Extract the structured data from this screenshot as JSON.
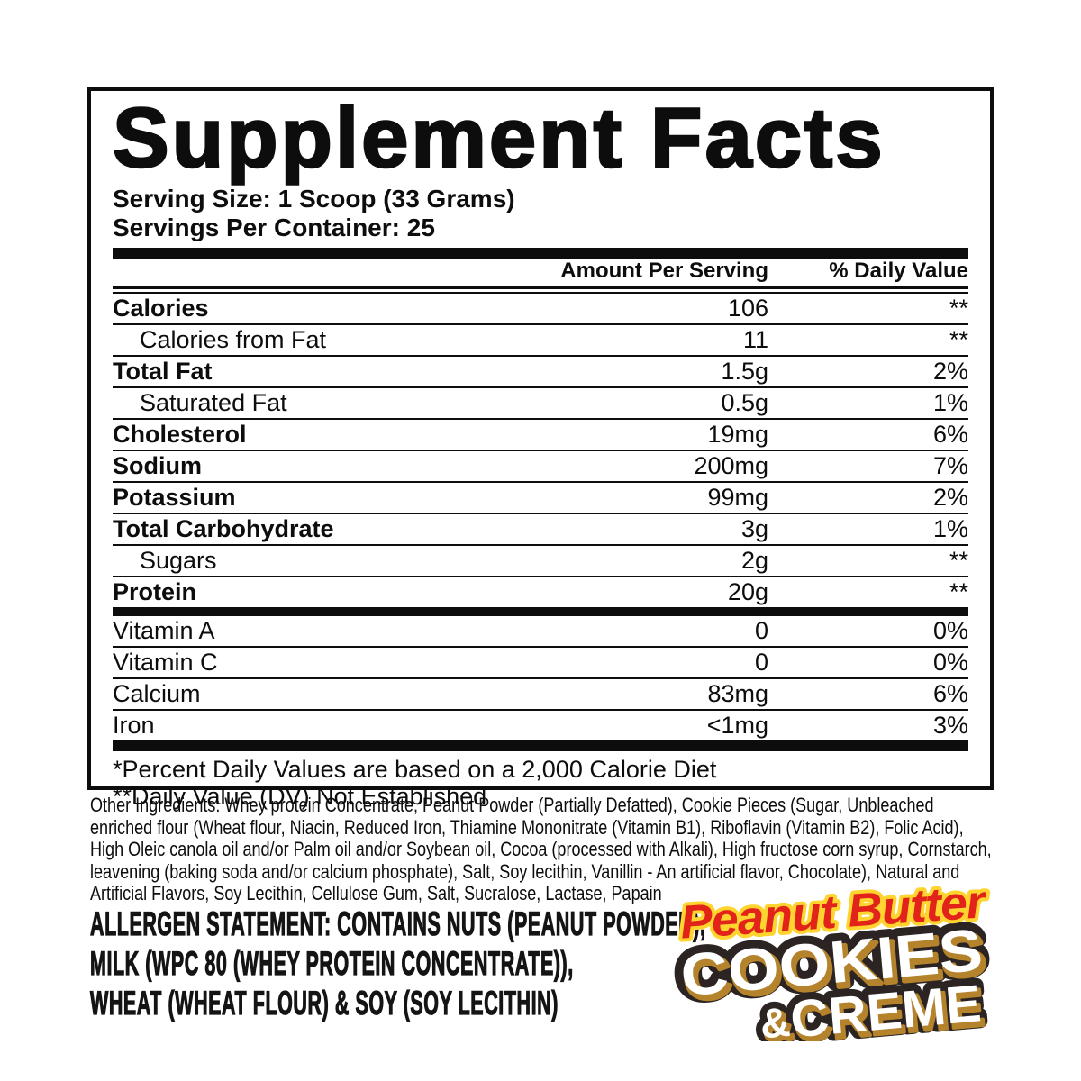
{
  "panel": {
    "title": "Supplement Facts",
    "serving_size": "Serving Size: 1 Scoop (33 Grams)",
    "servings_per_container": "Servings Per Container: 25",
    "columns": {
      "amount": "Amount Per Serving",
      "dv": "% Daily Value"
    },
    "rows": [
      {
        "label": "Calories",
        "amount": "106",
        "dv": "**"
      },
      {
        "label": "Calories from Fat",
        "amount": "11",
        "dv": "**"
      },
      {
        "label": "Total Fat",
        "amount": "1.5g",
        "dv": "2%"
      },
      {
        "label": "Saturated Fat",
        "amount": "0.5g",
        "dv": "1%"
      },
      {
        "label": "Cholesterol",
        "amount": "19mg",
        "dv": "6%"
      },
      {
        "label": "Sodium",
        "amount": "200mg",
        "dv": "7%"
      },
      {
        "label": "Potassium",
        "amount": "99mg",
        "dv": "2%"
      },
      {
        "label": "Total Carbohydrate",
        "amount": "3g",
        "dv": "1%"
      },
      {
        "label": "Sugars",
        "amount": "2g",
        "dv": "**"
      },
      {
        "label": "Protein",
        "amount": "20g",
        "dv": "**"
      },
      {
        "label": "Vitamin A",
        "amount": "0",
        "dv": "0%"
      },
      {
        "label": "Vitamin C",
        "amount": "0",
        "dv": "0%"
      },
      {
        "label": "Calcium",
        "amount": "83mg",
        "dv": "6%"
      },
      {
        "label": "Iron",
        "amount": "<1mg",
        "dv": "3%"
      }
    ],
    "footnotes": [
      "*Percent Daily Values are based on a 2,000 Calorie Diet",
      "**Daily Value (DV) Not Established"
    ]
  },
  "other_ingredients": "Other Ingredients: Whey protein Concentrate, Peanut Powder (Partially Defatted), Cookie Pieces (Sugar, Unbleached enriched flour (Wheat flour, Niacin, Reduced Iron, Thiamine Mononitrate (Vitamin B1), Riboflavin (Vitamin B2), Folic Acid), High Oleic canola oil and/or Palm oil and/or Soybean oil, Cocoa (processed with Alkali), High fructose corn syrup, Cornstarch, leavening (baking soda and/or calcium phosphate), Salt, Soy lecithin, Vanillin - An artificial flavor, Chocolate), Natural and Artificial Flavors, Soy Lecithin, Cellulose Gum, Salt, Sucralose, Lactase, Papain",
  "allergen": {
    "lines": [
      "ALLERGEN STATEMENT:  CONTAINS NUTS (PEANUT POWDER),",
      "MILK (WPC 80 (WHEY PROTEIN CONCENTRATE)),",
      "WHEAT (WHEAT FLOUR) & SOY (SOY LECITHIN)"
    ]
  },
  "flavor_logo": {
    "line1": "Peanut Butter",
    "line2": "COOKIES",
    "amp": "&",
    "line3": "CREME",
    "colors": {
      "script_red": "#e2231a",
      "script_yellow_outline": "#ffd42e",
      "cookie_dark": "#2b2422",
      "crumb_tan": "#b5832c",
      "creme_white": "#ffffff"
    }
  }
}
